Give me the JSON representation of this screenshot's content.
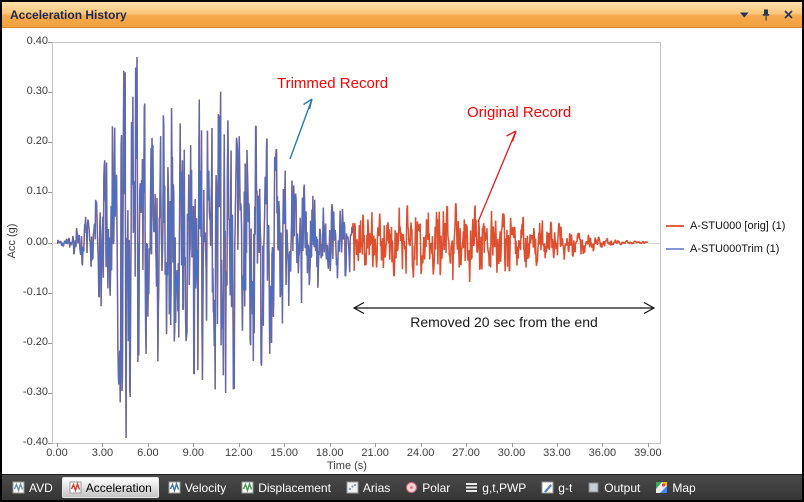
{
  "window": {
    "title": "Acceleration History",
    "controls": [
      {
        "name": "dropdown",
        "icon": "chevron-down-icon"
      },
      {
        "name": "pin",
        "icon": "pin-icon"
      },
      {
        "name": "close",
        "icon": "close-icon"
      }
    ]
  },
  "colors": {
    "titlebar_top": "#fddfae",
    "titlebar_bottom": "#f2a23c",
    "titlebar_text": "#1b2a52",
    "tabbar_bg": "#3b3b3b",
    "trace_blue": "#4a6fc3",
    "trace_red": "#dd4f2f",
    "annotation_red": "#ff0000",
    "annotation_arrow_blue": "#2878be"
  },
  "chart_data": {
    "type": "line",
    "title": "Acceleration History",
    "xlabel": "Time (s)",
    "ylabel": "Acc (g)",
    "xlim": [
      0,
      40
    ],
    "ylim": [
      -0.4,
      0.4
    ],
    "grid": "zero-line-only",
    "legend_position": "right",
    "x_ticks": [
      "0.00",
      "3.00",
      "6.00",
      "9.00",
      "12.00",
      "15.00",
      "18.00",
      "21.00",
      "24.00",
      "27.00",
      "30.00",
      "33.00",
      "36.00",
      "39.00"
    ],
    "x_tick_values": [
      0,
      3,
      6,
      9,
      12,
      15,
      18,
      21,
      24,
      27,
      30,
      33,
      36,
      39
    ],
    "y_ticks": [
      "0.40",
      "0.30",
      "0.20",
      "0.10",
      "0.00",
      "-0.10",
      "-0.20",
      "-0.30",
      "-0.40"
    ],
    "y_tick_values": [
      0.4,
      0.3,
      0.2,
      0.1,
      0.0,
      -0.1,
      -0.2,
      -0.3,
      -0.4
    ],
    "series": [
      {
        "name": "A-STU000 [orig]  (1)",
        "color": "#dd4f2f",
        "legend_color": "#e0604a",
        "t_start": 0,
        "t_end": 39.0,
        "line_width": 1.5
      },
      {
        "name": "A-STU000Trim (1)",
        "color": "#4a6fc3",
        "legend_color": "#8495d2",
        "t_start": 0,
        "t_end": 19.5,
        "line_width": 1.15
      }
    ],
    "peaks": {
      "max": [
        5.28,
        0.37
      ],
      "min": [
        4.56,
        -0.39
      ]
    },
    "anchors": [
      [
        4.56,
        -0.39
      ],
      [
        5.28,
        0.37
      ]
    ],
    "envelope": [
      [
        0,
        0.004
      ],
      [
        0.8,
        0.01
      ],
      [
        1.5,
        0.035
      ],
      [
        2.2,
        0.06
      ],
      [
        2.8,
        0.1
      ],
      [
        3.3,
        0.17
      ],
      [
        3.8,
        0.27
      ],
      [
        4.3,
        0.32
      ],
      [
        4.7,
        0.36
      ],
      [
        5.3,
        0.35
      ],
      [
        5.8,
        0.25
      ],
      [
        6.3,
        0.2
      ],
      [
        7.0,
        0.23
      ],
      [
        7.8,
        0.25
      ],
      [
        8.6,
        0.21
      ],
      [
        9.4,
        0.26
      ],
      [
        10.0,
        0.3
      ],
      [
        10.6,
        0.27
      ],
      [
        11.2,
        0.28
      ],
      [
        11.9,
        0.26
      ],
      [
        12.5,
        0.23
      ],
      [
        13.1,
        0.21
      ],
      [
        13.7,
        0.23
      ],
      [
        14.3,
        0.18
      ],
      [
        15.0,
        0.14
      ],
      [
        15.8,
        0.12
      ],
      [
        16.5,
        0.1
      ],
      [
        17.3,
        0.08
      ],
      [
        18.1,
        0.07
      ],
      [
        18.9,
        0.06
      ],
      [
        19.6,
        0.062
      ],
      [
        20.4,
        0.058
      ],
      [
        21.2,
        0.052
      ],
      [
        22.2,
        0.06
      ],
      [
        23.2,
        0.068
      ],
      [
        24.2,
        0.055
      ],
      [
        25.2,
        0.06
      ],
      [
        26.2,
        0.07
      ],
      [
        27.2,
        0.072
      ],
      [
        28.2,
        0.06
      ],
      [
        29.2,
        0.054
      ],
      [
        30.2,
        0.05
      ],
      [
        31.2,
        0.044
      ],
      [
        32.2,
        0.04
      ],
      [
        33.2,
        0.034
      ],
      [
        34.2,
        0.024
      ],
      [
        35.2,
        0.018
      ],
      [
        36.0,
        0.01
      ],
      [
        36.8,
        0.005
      ],
      [
        37.8,
        0.003
      ],
      [
        39.0,
        0.002
      ]
    ],
    "gen": {
      "dt": 0.03,
      "seed": 7,
      "noise": 0.65,
      "components": [
        [
          1.6,
          0.45,
          0.9
        ],
        [
          3.8,
          0.3,
          2.2
        ],
        [
          7.2,
          0.3,
          4.3
        ]
      ]
    },
    "annotations": [
      {
        "text": "Trimmed Record",
        "color": "#ff0000",
        "arrow_color": "#2878be"
      },
      {
        "text": "Original Record",
        "color": "#ff0000",
        "arrow_color": "#f01818"
      },
      {
        "text": "Removed 20 sec from the end",
        "color": "#1a1a1a",
        "arrow_color": "#101010"
      }
    ]
  },
  "tabs": {
    "items": [
      {
        "label": "AVD",
        "icon": "chart",
        "color": "#6f8fb8",
        "selected": false
      },
      {
        "label": "Acceleration",
        "icon": "chart",
        "color": "#d43b2a",
        "selected": true
      },
      {
        "label": "Velocity",
        "icon": "chart",
        "color": "#3a6fc4",
        "selected": false
      },
      {
        "label": "Displacement",
        "icon": "chart",
        "color": "#3fa04a",
        "selected": false
      },
      {
        "label": "Arias",
        "icon": "arias",
        "color": "#8898a8",
        "selected": false
      },
      {
        "label": "Polar",
        "icon": "polar",
        "color": "#d46a7a",
        "selected": false
      },
      {
        "label": "g,t,PWP",
        "icon": "lines",
        "color": "#e8e8e8",
        "selected": false
      },
      {
        "label": "g-t",
        "icon": "pencil",
        "color": "#4a86c8",
        "selected": false
      },
      {
        "label": "Output",
        "icon": "square",
        "color": "#c8cdd4",
        "selected": false
      },
      {
        "label": "Map",
        "icon": "map",
        "color": "#4285f4",
        "selected": false
      }
    ]
  }
}
